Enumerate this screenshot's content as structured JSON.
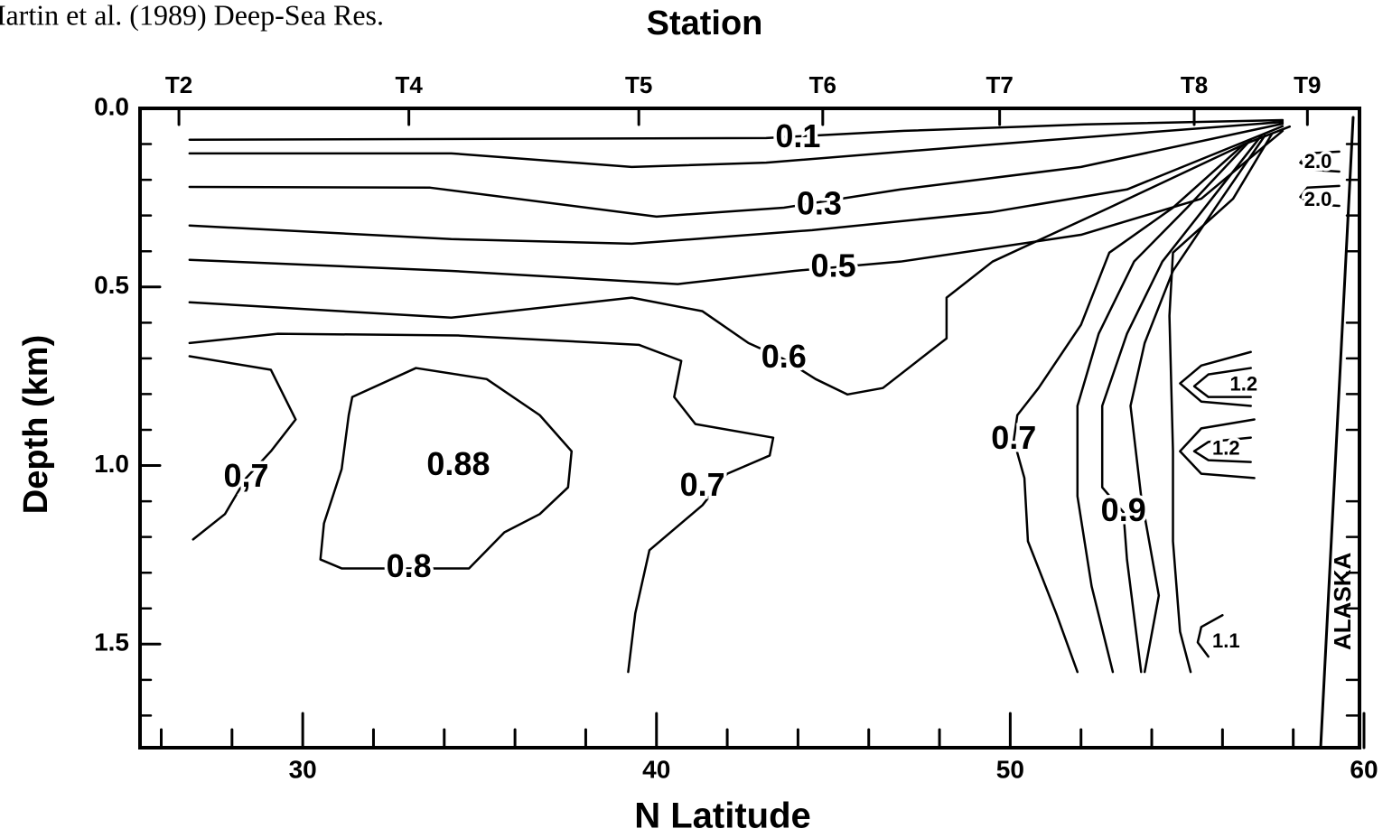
{
  "chart_data": {
    "type": "contour",
    "source": "Martin et al. (1989) Deep-Sea Res.",
    "title": "Station",
    "xlabel": "N Latitude",
    "ylabel": "Depth (km)",
    "region_label": "ALASKA",
    "xlim": [
      25.4,
      60
    ],
    "ylim": [
      0,
      1.79
    ],
    "y_inverted": true,
    "color": "#000000",
    "xticks": [
      30,
      40,
      50,
      60
    ],
    "xminorticks": [
      26,
      28,
      32,
      34,
      36,
      38,
      42,
      44,
      46,
      48,
      52,
      54,
      56,
      58
    ],
    "yticks": [
      {
        "value": 0,
        "label": "0.0"
      },
      0.5,
      {
        "value": 1,
        "label": "1.0"
      },
      1.5
    ],
    "yminorticks": [
      0.1,
      0.2,
      0.3,
      0.4,
      0.6,
      0.7,
      0.8,
      0.9,
      1.1,
      1.2,
      1.3,
      1.4,
      1.6,
      1.7
    ],
    "stations": [
      {
        "name": "T2",
        "x": 26.5
      },
      {
        "name": "T4",
        "x": 33.0
      },
      {
        "name": "T5",
        "x": 39.5
      },
      {
        "name": "T6",
        "x": 44.7
      },
      {
        "name": "T7",
        "x": 49.7
      },
      {
        "name": "T8",
        "x": 55.2
      },
      {
        "name": "T9",
        "x": 58.4
      }
    ],
    "contours": [
      {
        "x": [
          26.8,
          43.1,
          47.0,
          52.1,
          57.7
        ],
        "y": [
          0.088,
          0.083,
          0.063,
          0.045,
          0.033
        ]
      },
      {
        "x": [
          26.8,
          34.2,
          39.3,
          43.1,
          49.5,
          57.7
        ],
        "y": [
          0.126,
          0.126,
          0.164,
          0.152,
          0.101,
          0.038
        ]
      },
      {
        "x": [
          26.8,
          33.6,
          40.0,
          43.6,
          46.9,
          52.0,
          57.7
        ],
        "y": [
          0.22,
          0.222,
          0.303,
          0.278,
          0.227,
          0.164,
          0.043
        ]
      },
      {
        "x": [
          26.8,
          34.2,
          39.3,
          44.4,
          49.5,
          53.3,
          57.7
        ],
        "y": [
          0.328,
          0.366,
          0.379,
          0.341,
          0.29,
          0.227,
          0.05
        ]
      },
      {
        "x": [
          26.8,
          34.2,
          40.6,
          43.9,
          46.9,
          52.0,
          55.4,
          57.7
        ],
        "y": [
          0.424,
          0.455,
          0.492,
          0.455,
          0.429,
          0.354,
          0.253,
          0.063
        ]
      },
      {
        "x": [
          26.8,
          34.2,
          39.3,
          41.3,
          42.6,
          43.6,
          44.5,
          45.4,
          46.4,
          48.2,
          48.2,
          49.5,
          52.8,
          56.6,
          57.9
        ],
        "y": [
          0.543,
          0.586,
          0.53,
          0.568,
          0.657,
          0.702,
          0.758,
          0.801,
          0.783,
          0.644,
          0.53,
          0.429,
          0.278,
          0.101,
          0.051
        ]
      },
      {
        "x": [
          26.8,
          29.3,
          34.4,
          39.5,
          40.7,
          40.5,
          41.1,
          43.3,
          43.2,
          42.0,
          41.3,
          39.8,
          39.4,
          39.2
        ],
        "y": [
          0.657,
          0.631,
          0.636,
          0.662,
          0.707,
          0.808,
          0.884,
          0.922,
          0.972,
          1.023,
          1.111,
          1.237,
          1.414,
          1.578
        ]
      },
      {
        "x": [
          26.8,
          29.1,
          29.8,
          29.1,
          28.4,
          27.8,
          26.9
        ],
        "y": [
          0.694,
          0.732,
          0.871,
          0.96,
          1.035,
          1.136,
          1.207
        ]
      },
      {
        "x": [
          31.4,
          33.2,
          35.2,
          36.7,
          37.6,
          37.5,
          36.7,
          35.7,
          34.7,
          33.0,
          31.1,
          30.5,
          30.6,
          31.1,
          31.3,
          31.4
        ],
        "y": [
          0.808,
          0.727,
          0.758,
          0.859,
          0.96,
          1.061,
          1.136,
          1.187,
          1.288,
          1.288,
          1.288,
          1.263,
          1.162,
          1.01,
          0.859,
          0.808
        ]
      },
      {
        "x": [
          56.6,
          54.6,
          52.8,
          52.0,
          50.8,
          50.2,
          50.1,
          50.4,
          50.5,
          51.3,
          51.9
        ],
        "y": [
          0.101,
          0.278,
          0.404,
          0.606,
          0.783,
          0.859,
          0.929,
          1.035,
          1.212,
          1.414,
          1.578
        ]
      },
      {
        "x": [
          56.8,
          55.0,
          53.5,
          52.5,
          51.9,
          51.9,
          52.3,
          52.9
        ],
        "y": [
          0.088,
          0.278,
          0.429,
          0.631,
          0.833,
          1.086,
          1.338,
          1.578
        ]
      },
      {
        "x": [
          57.1,
          55.5,
          54.3,
          53.3,
          52.6,
          52.6,
          53.2,
          53.3,
          53.7
        ],
        "y": [
          0.076,
          0.278,
          0.429,
          0.631,
          0.833,
          1.061,
          1.131,
          1.263,
          1.578
        ]
      },
      {
        "x": [
          57.2,
          55.8,
          54.6,
          53.8,
          53.4,
          53.7,
          54.2,
          53.8
        ],
        "y": [
          0.076,
          0.278,
          0.455,
          0.657,
          0.833,
          1.086,
          1.364,
          1.578
        ]
      },
      {
        "x": [
          57.4,
          56.3,
          54.6,
          54.5,
          54.6,
          54.6,
          54.8,
          55.1
        ],
        "y": [
          0.071,
          0.253,
          0.404,
          0.581,
          0.96,
          1.212,
          1.465,
          1.578
        ]
      },
      {
        "x": [
          56.8,
          55.4,
          54.8,
          55.4,
          56.8
        ],
        "y": [
          0.682,
          0.72,
          0.77,
          0.821,
          0.833
        ]
      },
      {
        "x": [
          56.8,
          55.6,
          55.2,
          55.6,
          56.8
        ],
        "y": [
          0.727,
          0.745,
          0.778,
          0.808,
          0.808
        ]
      },
      {
        "x": [
          56.9,
          55.4,
          54.8,
          55.4,
          56.9
        ],
        "y": [
          0.871,
          0.896,
          0.96,
          1.023,
          1.035
        ]
      },
      {
        "x": [
          56.8,
          55.6,
          55.2,
          55.6,
          56.8
        ],
        "y": [
          0.922,
          0.934,
          0.96,
          0.985,
          0.99
        ]
      },
      {
        "x": [
          56.0,
          55.4,
          55.3,
          55.6
        ],
        "y": [
          1.419,
          1.452,
          1.495,
          1.535
        ]
      },
      {
        "x": [
          59.3,
          58.4,
          58.2,
          58.5,
          59.3
        ],
        "y": [
          0.121,
          0.126,
          0.152,
          0.172,
          0.177
        ]
      },
      {
        "x": [
          59.3,
          58.4,
          58.2,
          58.5,
          59.3
        ],
        "y": [
          0.217,
          0.222,
          0.248,
          0.268,
          0.273
        ]
      }
    ],
    "annotations": [
      {
        "text": "0.1",
        "x": 44.0,
        "y": 0.085
      },
      {
        "text": "0.3",
        "x": 44.6,
        "y": 0.273
      },
      {
        "text": "0.5",
        "x": 45.0,
        "y": 0.447
      },
      {
        "text": "0.6",
        "x": 43.6,
        "y": 0.702
      },
      {
        "text": "0,7",
        "x": 28.4,
        "y": 1.035
      },
      {
        "text": "0.88",
        "x": 34.4,
        "y": 1.003
      },
      {
        "text": "0.8",
        "x": 33.0,
        "y": 1.288
      },
      {
        "text": "0.7",
        "x": 41.3,
        "y": 1.061
      },
      {
        "text": "0.7",
        "x": 50.1,
        "y": 0.929
      },
      {
        "text": "0.9",
        "x": 53.2,
        "y": 1.131
      },
      {
        "text": "1.2",
        "x": 56.6,
        "y": 0.775
      },
      {
        "text": "1.2",
        "x": 56.1,
        "y": 0.955
      },
      {
        "text": "1.1",
        "x": 56.1,
        "y": 1.495
      },
      {
        "text": "2.0",
        "x": 58.7,
        "y": 0.152
      },
      {
        "text": "2.0",
        "x": 58.7,
        "y": 0.258
      }
    ]
  }
}
